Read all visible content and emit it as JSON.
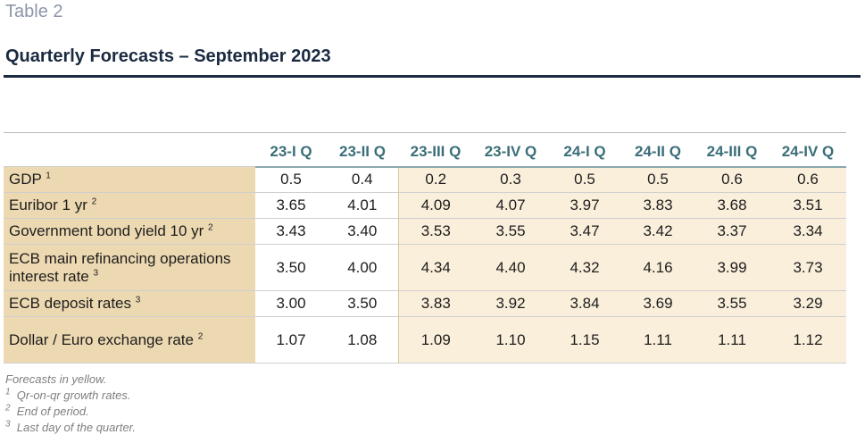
{
  "header": {
    "table_label": "Table 2",
    "title": "Quarterly Forecasts – September 2023"
  },
  "table": {
    "columns": [
      "23-I Q",
      "23-II Q",
      "23-III Q",
      "23-IV Q",
      "24-I Q",
      "24-II Q",
      "24-III Q",
      "24-IV Q"
    ],
    "rows": [
      {
        "label": "GDP",
        "sup": "1",
        "values": [
          "0.5",
          "0.4",
          "0.2",
          "0.3",
          "0.5",
          "0.5",
          "0.6",
          "0.6"
        ]
      },
      {
        "label": "Euribor 1 yr",
        "sup": "2",
        "values": [
          "3.65",
          "4.01",
          "4.09",
          "4.07",
          "3.97",
          "3.83",
          "3.68",
          "3.51"
        ]
      },
      {
        "label": "Government bond yield 10 yr",
        "sup": "2",
        "values": [
          "3.43",
          "3.40",
          "3.53",
          "3.55",
          "3.47",
          "3.42",
          "3.37",
          "3.34"
        ]
      },
      {
        "label": "ECB main refinancing operations interest rate",
        "sup": "3",
        "values": [
          "3.50",
          "4.00",
          "4.34",
          "4.40",
          "4.32",
          "4.16",
          "3.99",
          "3.73"
        ]
      },
      {
        "label": "ECB deposit rates",
        "sup": "3",
        "values": [
          "3.00",
          "3.50",
          "3.83",
          "3.92",
          "3.84",
          "3.69",
          "3.55",
          "3.29"
        ]
      },
      {
        "label": "Dollar / Euro exchange rate",
        "sup": "2",
        "values": [
          "1.07",
          "1.08",
          "1.09",
          "1.10",
          "1.15",
          "1.11",
          "1.11",
          "1.12"
        ]
      }
    ],
    "forecast_start_column": 2
  },
  "notes": {
    "forecast_note": "Forecasts in yellow.",
    "footnotes": [
      {
        "mark": "1",
        "text": "Qr-on-qr growth rates."
      },
      {
        "mark": "2",
        "text": "End of period."
      },
      {
        "mark": "3",
        "text": "Last day of the quarter."
      }
    ]
  },
  "colors": {
    "label_bg": "#edd9b1",
    "forecast_bg": "#faefdb",
    "header_text": "#3b6e78",
    "title_text": "#1a2a40"
  }
}
